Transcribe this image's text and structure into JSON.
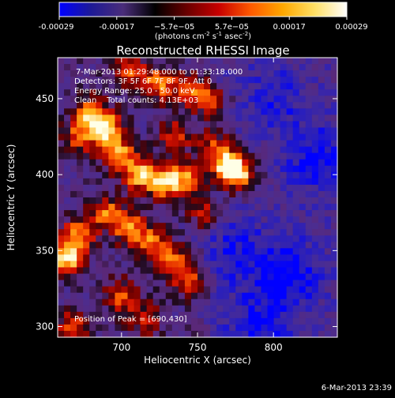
{
  "colorbar": {
    "tick_labels": [
      "-0.00029",
      "-0.00017",
      "−5.7e−05",
      "5.7e−05",
      "0.00017",
      "0.00029"
    ],
    "units_prefix": "(photons cm",
    "units_exp1": "-2",
    "units_mid": " s",
    "units_exp2": "-1",
    "units_mid2": " asec",
    "units_exp3": "-2",
    "units_suffix": ")",
    "colors": [
      "#0000ff",
      "#1e1a96",
      "#4a2d7a",
      "#000000",
      "#6a0000",
      "#c80000",
      "#ff5a00",
      "#ffa800",
      "#ffe066",
      "#ffffff"
    ]
  },
  "chart_data": {
    "type": "heatmap",
    "title": "Reconstructed RHESSI Image",
    "xlabel": "Heliocentric X (arcsec)",
    "ylabel": "Heliocentric Y (arcsec)",
    "xlim": [
      658,
      842
    ],
    "ylim": [
      293,
      477
    ],
    "x_ticks": [
      700,
      750,
      800
    ],
    "y_ticks": [
      300,
      350,
      400,
      450
    ],
    "info_lines": [
      "7-Mar-2013 01:29:48.000 to 01:33:18.000",
      "Detectors: 3F 5F 6F 7F 8F 9F, Att 0",
      "Energy Range: 25.0 - 50.0 keV",
      "Clean    Total counts: 4.13E+03"
    ],
    "peak_label": "Position of Peak = [690,430]",
    "peak_position": [
      690,
      430
    ],
    "sources": [
      {
        "x": 690,
        "y": 430,
        "amp": 1.0
      },
      {
        "x": 680,
        "y": 440,
        "amp": 0.8
      },
      {
        "x": 672,
        "y": 425,
        "amp": 0.6
      },
      {
        "x": 698,
        "y": 413,
        "amp": 0.85
      },
      {
        "x": 712,
        "y": 400,
        "amp": 0.9
      },
      {
        "x": 728,
        "y": 395,
        "amp": 0.9
      },
      {
        "x": 742,
        "y": 398,
        "amp": 0.7
      },
      {
        "x": 770,
        "y": 405,
        "amp": 1.0
      },
      {
        "x": 778,
        "y": 400,
        "amp": 0.8
      },
      {
        "x": 762,
        "y": 418,
        "amp": 0.6
      },
      {
        "x": 664,
        "y": 345,
        "amp": 1.0
      },
      {
        "x": 672,
        "y": 360,
        "amp": 0.8
      },
      {
        "x": 690,
        "y": 375,
        "amp": 0.7
      },
      {
        "x": 705,
        "y": 365,
        "amp": 0.75
      },
      {
        "x": 720,
        "y": 355,
        "amp": 0.7
      },
      {
        "x": 735,
        "y": 342,
        "amp": 0.7
      },
      {
        "x": 745,
        "y": 330,
        "amp": 0.55
      },
      {
        "x": 700,
        "y": 320,
        "amp": 0.6
      },
      {
        "x": 715,
        "y": 305,
        "amp": 0.5
      },
      {
        "x": 668,
        "y": 300,
        "amp": 0.6
      },
      {
        "x": 725,
        "y": 460,
        "amp": 0.75
      },
      {
        "x": 745,
        "y": 455,
        "amp": 0.65
      },
      {
        "x": 760,
        "y": 448,
        "amp": 0.55
      },
      {
        "x": 705,
        "y": 468,
        "amp": 0.6
      },
      {
        "x": 755,
        "y": 375,
        "amp": 0.45
      },
      {
        "x": 735,
        "y": 425,
        "amp": 0.55
      }
    ],
    "dark_zones": [
      {
        "x": 810,
        "y": 335,
        "amp": 0.9
      },
      {
        "x": 830,
        "y": 410,
        "amp": 0.8
      },
      {
        "x": 790,
        "y": 300,
        "amp": 0.7
      },
      {
        "x": 800,
        "y": 450,
        "amp": 0.6
      },
      {
        "x": 775,
        "y": 350,
        "amp": 0.6
      }
    ]
  },
  "footer": {
    "timestamp": "6-Mar-2013 23:39"
  }
}
